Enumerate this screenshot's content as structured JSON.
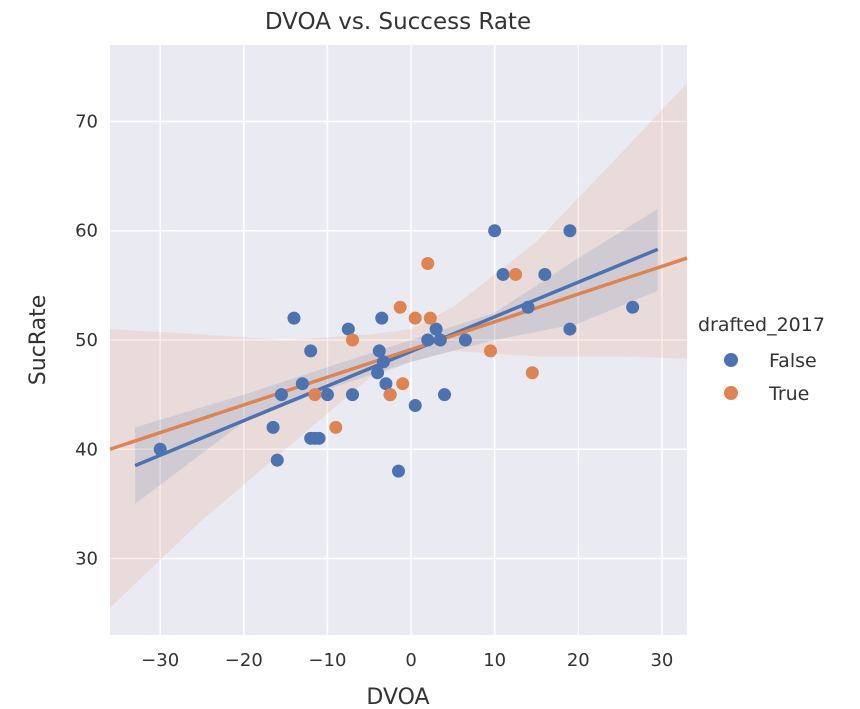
{
  "chart_data": {
    "type": "scatter",
    "title": "DVOA vs. Success Rate",
    "xlabel": "DVOA",
    "ylabel": "SucRate",
    "xlim": [
      -36,
      33
    ],
    "ylim": [
      23,
      77
    ],
    "xticks": [
      -30,
      -20,
      -10,
      0,
      10,
      20,
      30
    ],
    "xtick_labels": [
      "−30",
      "−20",
      "−10",
      "0",
      "10",
      "20",
      "30"
    ],
    "yticks": [
      30,
      40,
      50,
      60,
      70
    ],
    "ytick_labels": [
      "30",
      "40",
      "50",
      "60",
      "70"
    ],
    "grid": true,
    "legend": {
      "title": "drafted_2017",
      "placement": "right",
      "entries": [
        "False",
        "True"
      ]
    },
    "series": [
      {
        "name": "False",
        "color": "#4c72b0",
        "points": [
          [
            -30,
            40
          ],
          [
            -16.5,
            42
          ],
          [
            -16,
            39
          ],
          [
            -15.5,
            45
          ],
          [
            -14,
            52
          ],
          [
            -13,
            46
          ],
          [
            -12,
            49
          ],
          [
            -12,
            41
          ],
          [
            -11.5,
            41
          ],
          [
            -11,
            41
          ],
          [
            -10,
            45
          ],
          [
            -7.5,
            51
          ],
          [
            -7,
            45
          ],
          [
            -4,
            47
          ],
          [
            -3.8,
            49
          ],
          [
            -3.5,
            52
          ],
          [
            -3.3,
            48
          ],
          [
            -3,
            46
          ],
          [
            -2.5,
            45
          ],
          [
            -1.5,
            38
          ],
          [
            0.5,
            44
          ],
          [
            2,
            50
          ],
          [
            3,
            51
          ],
          [
            3.5,
            50
          ],
          [
            4,
            45
          ],
          [
            6.5,
            50
          ],
          [
            10,
            60
          ],
          [
            11,
            56
          ],
          [
            14,
            53
          ],
          [
            16,
            56
          ],
          [
            19,
            60
          ],
          [
            19,
            51
          ],
          [
            26.5,
            53
          ]
        ],
        "fit": {
          "x": [
            -33,
            29.5
          ],
          "y": [
            38.5,
            58.3
          ]
        },
        "ci": {
          "x": [
            -33,
            -20,
            -10,
            0,
            10,
            20,
            29.5
          ],
          "lower": [
            35,
            42.5,
            45.5,
            48,
            50,
            51.5,
            54.5
          ],
          "upper": [
            42,
            45,
            47.5,
            50,
            52.5,
            57.5,
            62
          ]
        }
      },
      {
        "name": "True",
        "color": "#dd8452",
        "points": [
          [
            -11.5,
            45
          ],
          [
            -9,
            42
          ],
          [
            -7,
            50
          ],
          [
            -2.5,
            45
          ],
          [
            -1.3,
            53
          ],
          [
            -1,
            46
          ],
          [
            0.5,
            52
          ],
          [
            2,
            57
          ],
          [
            2.3,
            52
          ],
          [
            9.5,
            49
          ],
          [
            12.5,
            56
          ],
          [
            14.5,
            47
          ]
        ],
        "fit": {
          "x": [
            -36,
            33
          ],
          "y": [
            40,
            57.5
          ]
        },
        "ci": {
          "x": [
            -36,
            -25,
            -15,
            -5,
            0,
            5,
            15,
            25,
            33
          ],
          "lower": [
            25.5,
            33.5,
            40,
            46.5,
            48,
            49,
            48.5,
            48.5,
            48.3
          ],
          "upper": [
            51,
            50.5,
            50,
            50.5,
            51,
            53,
            59,
            67,
            73.5
          ]
        }
      }
    ]
  }
}
